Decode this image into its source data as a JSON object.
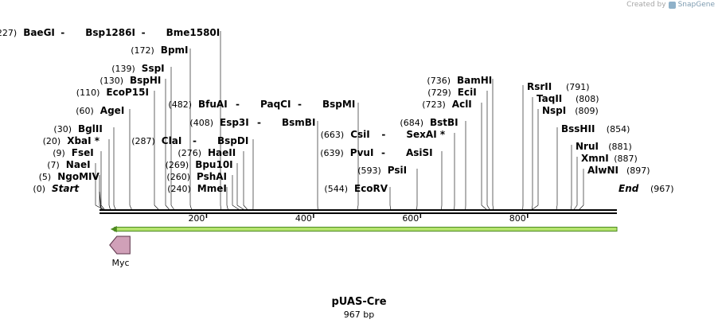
{
  "watermark": {
    "prefix": "Created by",
    "brand": "SnapGene"
  },
  "plasmid": {
    "name": "pUAS-Cre",
    "length_label": "967 bp",
    "length_bp": 967
  },
  "colors": {
    "backbone": "#000000",
    "orf_fill": "#b4e36d",
    "orf_stroke": "#4d8a21",
    "feature_fill": "#d0a0b8",
    "feature_stroke": "#5c3349",
    "leader": "#000000"
  },
  "ruler": {
    "ticks": [
      200,
      400,
      600,
      800
    ]
  },
  "ends": {
    "start": {
      "pos_label": "(0)",
      "label": "Start"
    },
    "end": {
      "pos_label": "(967)",
      "label": "End"
    }
  },
  "sites": [
    {
      "pos": 5,
      "pos_label": "(5)",
      "names": [
        "NgoMIV"
      ]
    },
    {
      "pos": 7,
      "pos_label": "(7)",
      "names": [
        "NaeI"
      ]
    },
    {
      "pos": 9,
      "pos_label": "(9)",
      "names": [
        "FseI"
      ]
    },
    {
      "pos": 20,
      "pos_label": "(20)",
      "names": [
        "XbaI *"
      ]
    },
    {
      "pos": 30,
      "pos_label": "(30)",
      "names": [
        "BglII"
      ]
    },
    {
      "pos": 60,
      "pos_label": "(60)",
      "names": [
        "AgeI"
      ]
    },
    {
      "pos": 110,
      "pos_label": "(110)",
      "names": [
        "EcoP15I"
      ]
    },
    {
      "pos": 130,
      "pos_label": "(130)",
      "names": [
        "BspHI"
      ]
    },
    {
      "pos": 139,
      "pos_label": "(139)",
      "names": [
        "SspI"
      ]
    },
    {
      "pos": 172,
      "pos_label": "(172)",
      "names": [
        "BpmI"
      ]
    },
    {
      "pos": 227,
      "pos_label": "(227)",
      "names": [
        "BaeGI",
        "Bsp1286I",
        "Bme1580I"
      ]
    },
    {
      "pos": 240,
      "pos_label": "(240)",
      "names": [
        "MmeI"
      ]
    },
    {
      "pos": 260,
      "pos_label": "(260)",
      "names": [
        "PshAI"
      ]
    },
    {
      "pos": 269,
      "pos_label": "(269)",
      "names": [
        "Bpu10I"
      ]
    },
    {
      "pos": 276,
      "pos_label": "(276)",
      "names": [
        "HaeII"
      ]
    },
    {
      "pos": 287,
      "pos_label": "(287)",
      "names": [
        "ClaI",
        "BspDI"
      ]
    },
    {
      "pos": 408,
      "pos_label": "(408)",
      "names": [
        "Esp3I",
        "BsmBI"
      ]
    },
    {
      "pos": 482,
      "pos_label": "(482)",
      "names": [
        "BfuAI",
        "PaqCI",
        "BspMI"
      ]
    },
    {
      "pos": 544,
      "pos_label": "(544)",
      "names": [
        "EcoRV"
      ]
    },
    {
      "pos": 593,
      "pos_label": "(593)",
      "names": [
        "PsiI"
      ]
    },
    {
      "pos": 639,
      "pos_label": "(639)",
      "names": [
        "PvuI",
        "AsiSI"
      ]
    },
    {
      "pos": 663,
      "pos_label": "(663)",
      "names": [
        "CsiI",
        "SexAI *"
      ]
    },
    {
      "pos": 684,
      "pos_label": "(684)",
      "names": [
        "BstBI"
      ]
    },
    {
      "pos": 723,
      "pos_label": "(723)",
      "names": [
        "AclI"
      ]
    },
    {
      "pos": 729,
      "pos_label": "(729)",
      "names": [
        "EciI"
      ]
    },
    {
      "pos": 736,
      "pos_label": "(736)",
      "names": [
        "BamHI"
      ]
    },
    {
      "pos": 791,
      "pos_label": "(791)",
      "names": [
        "RsrII"
      ]
    },
    {
      "pos": 808,
      "pos_label": "(808)",
      "names": [
        "TaqII"
      ]
    },
    {
      "pos": 809,
      "pos_label": "(809)",
      "names": [
        "NspI"
      ]
    },
    {
      "pos": 854,
      "pos_label": "(854)",
      "names": [
        "BssHII"
      ]
    },
    {
      "pos": 881,
      "pos_label": "(881)",
      "names": [
        "NruI"
      ]
    },
    {
      "pos": 887,
      "pos_label": "(887)",
      "names": [
        "XmnI"
      ]
    },
    {
      "pos": 897,
      "pos_label": "(897)",
      "names": [
        "AlwNI"
      ]
    }
  ],
  "features": [
    {
      "name": "orf",
      "label": "",
      "start": 25,
      "end": 967,
      "direction": "reverse",
      "kind": "orf-arrow"
    },
    {
      "name": "myc",
      "label": "Myc",
      "start": 25,
      "end": 60,
      "direction": "reverse",
      "kind": "tag"
    }
  ]
}
